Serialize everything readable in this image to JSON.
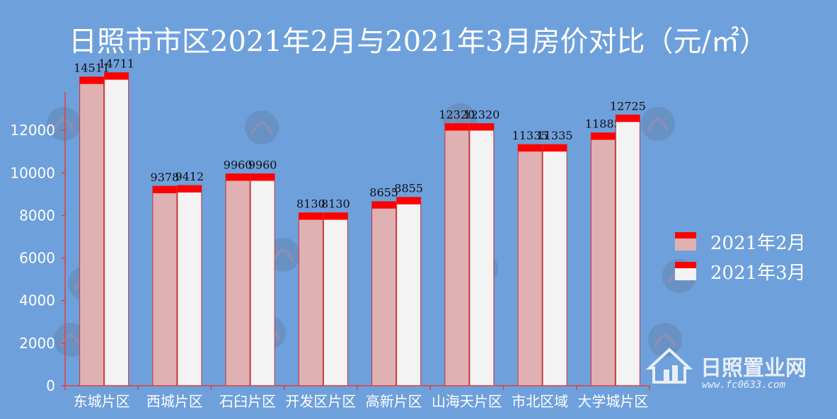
{
  "chart_data": {
    "type": "bar",
    "title": "日照市市区2021年2月与2021年3月房价对比（元/㎡）",
    "categories": [
      "东城片区",
      "西城片区",
      "石臼片区",
      "开发区片区",
      "高新片区",
      "山海天片区",
      "市北区域",
      "大学城片区"
    ],
    "series": [
      {
        "name": "2021年2月",
        "values": [
          14511,
          9378,
          9960,
          8130,
          8655,
          12320,
          11335,
          11885
        ],
        "color": "#dfb1b2"
      },
      {
        "name": "2021年3月",
        "values": [
          14711,
          9412,
          9960,
          8130,
          8855,
          12320,
          11335,
          12725
        ],
        "color": "#f3f3f3"
      }
    ],
    "cap_color": "#ff0000",
    "axis_color": "#e04040",
    "ylim": [
      0,
      13800
    ],
    "yticks": [
      0,
      2000,
      4000,
      6000,
      8000,
      10000,
      12000
    ],
    "legend_position": "right",
    "grid": false
  },
  "watermark": {
    "brand": "日照置业网",
    "url": "www.fc0633.com"
  }
}
